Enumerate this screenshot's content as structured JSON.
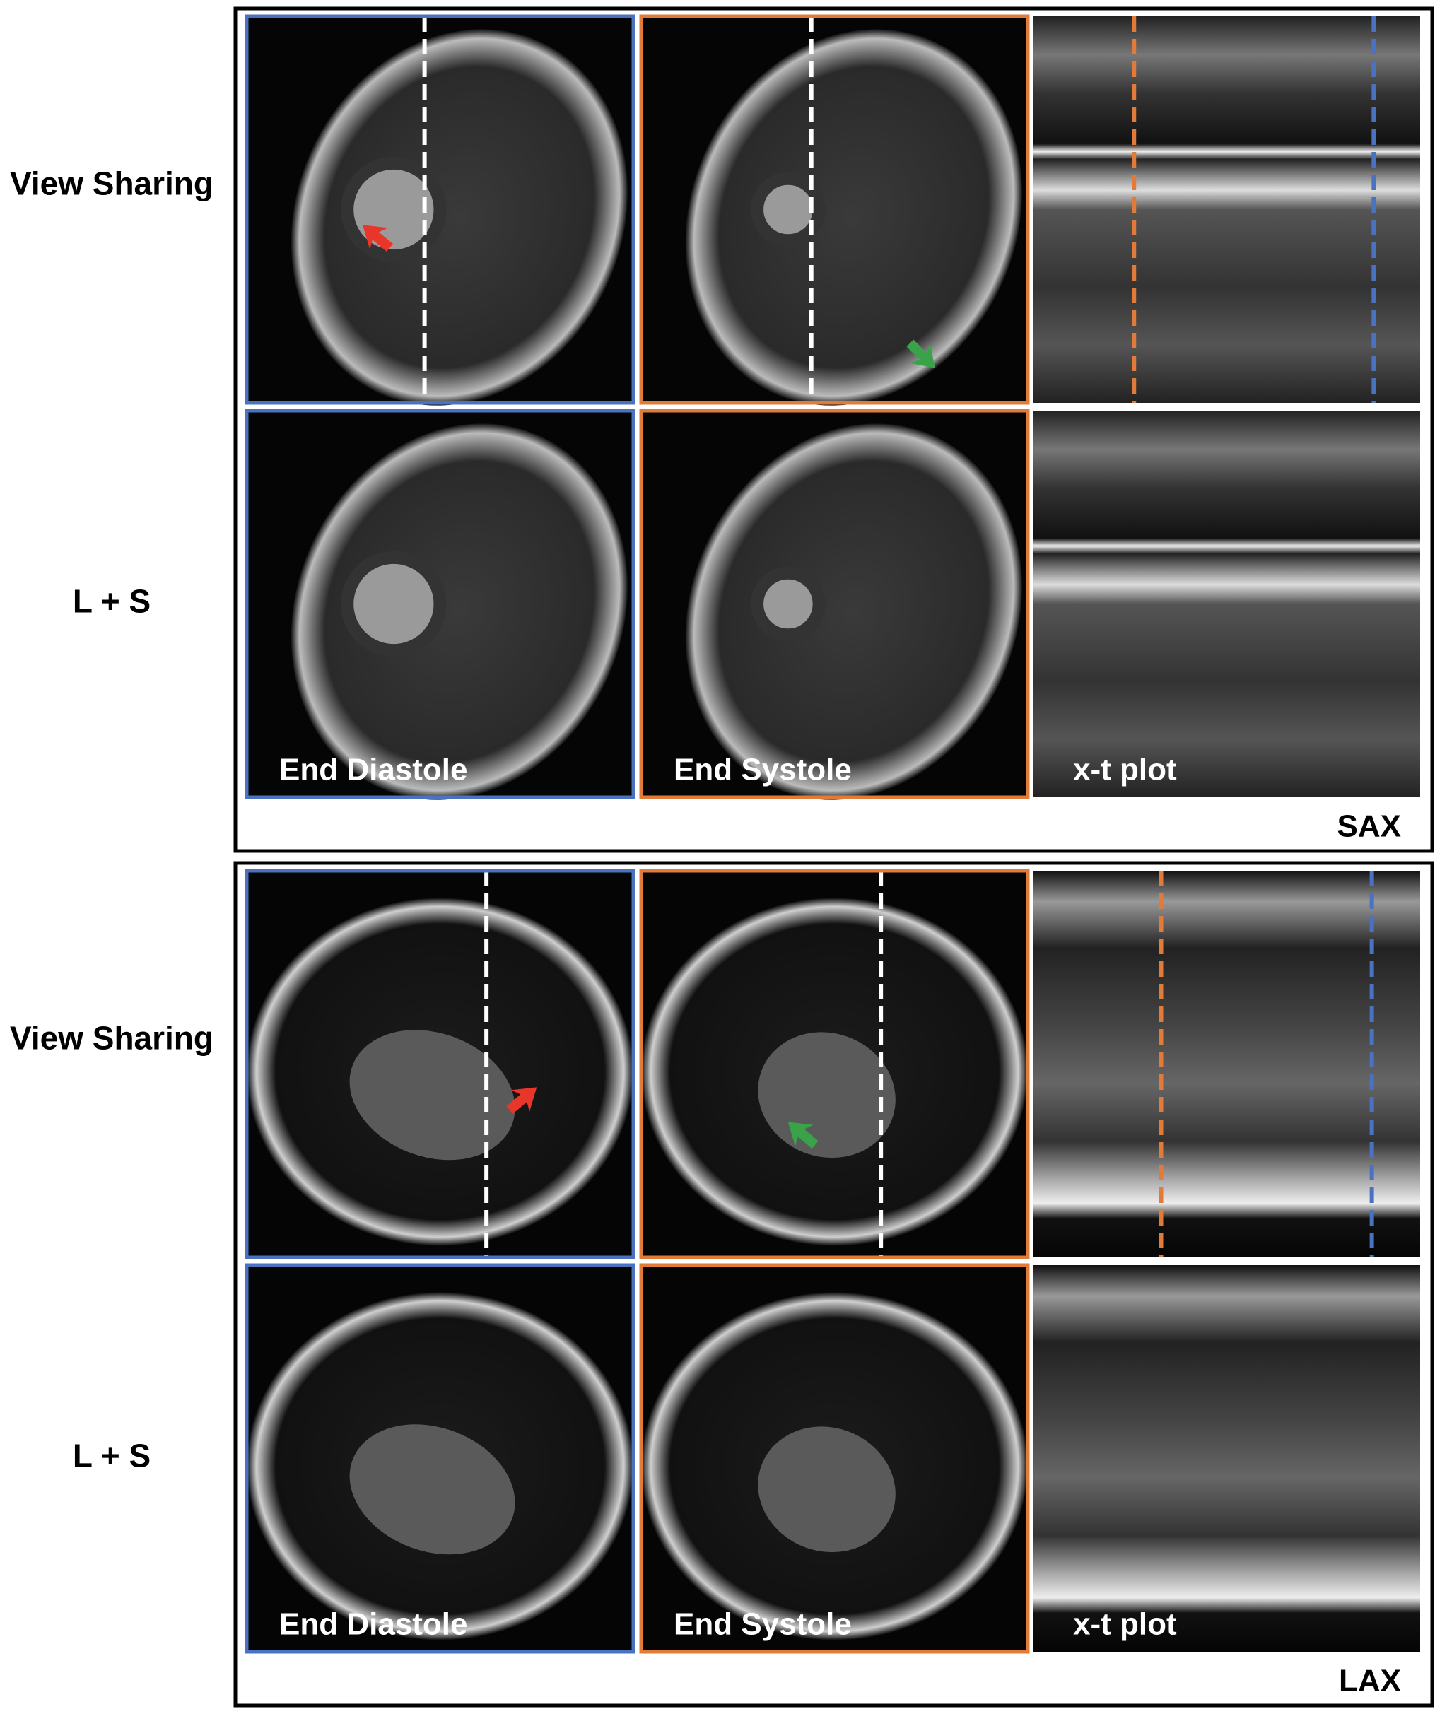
{
  "panels": [
    {
      "label": "SAX",
      "rows": [
        "View Sharing",
        "L + S"
      ],
      "captions": [
        "End Diastole",
        "End Systole",
        "x-t plot"
      ]
    },
    {
      "label": "LAX",
      "rows": [
        "View Sharing",
        "L + S"
      ],
      "captions": [
        "End Diastole",
        "End Systole",
        "x-t plot"
      ]
    }
  ]
}
